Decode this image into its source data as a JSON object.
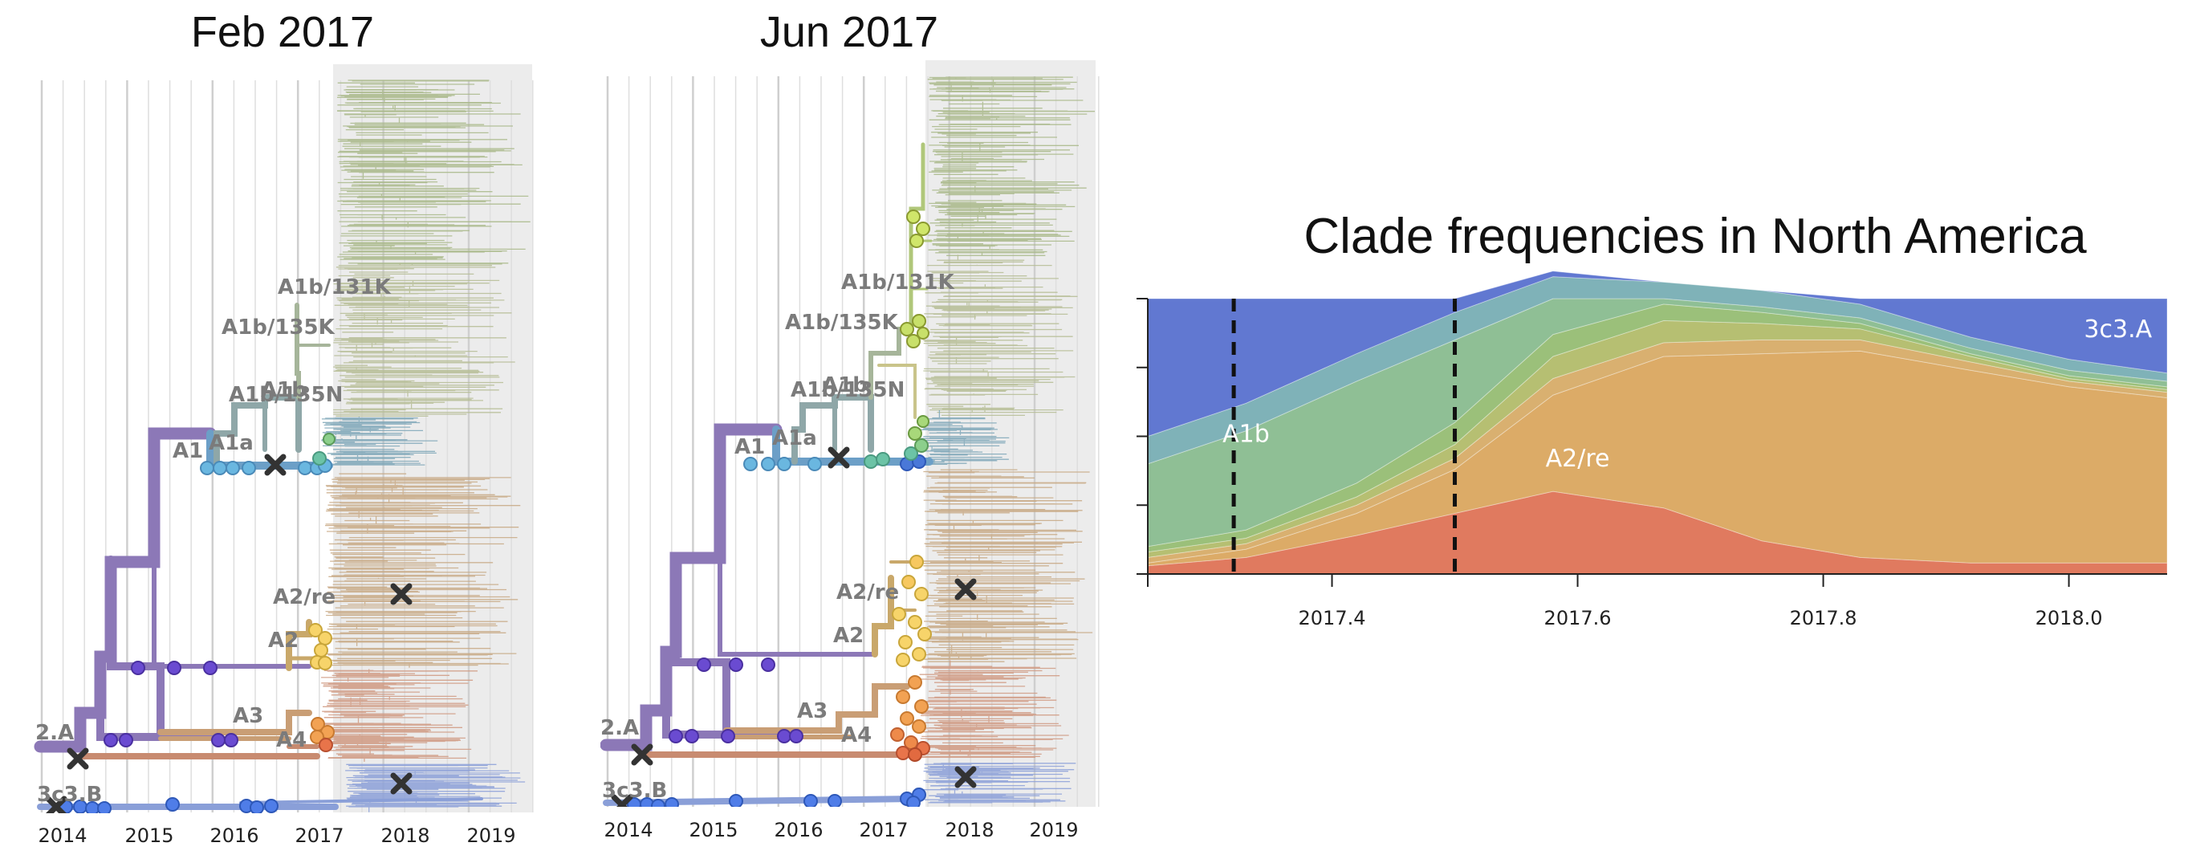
{
  "panels": [
    {
      "title": "Feb 2017",
      "x_ticks": [
        "2014",
        "2015",
        "2016",
        "2017",
        "2018",
        "2019"
      ],
      "clade_labels": [
        "A1b/131K",
        "A1b/135K",
        "A1b/135N",
        "A1b",
        "A1a",
        "A1",
        "A2/re",
        "A2",
        "A3",
        "A4",
        "2.A",
        "3c3.B"
      ]
    },
    {
      "title": "Jun 2017",
      "x_ticks": [
        "2014",
        "2015",
        "2016",
        "2017",
        "2018",
        "2019"
      ],
      "clade_labels": [
        "A1b/131K",
        "A1b/135K",
        "A1b/135N",
        "A1b",
        "A1a",
        "A1",
        "A2/re",
        "A2",
        "A3",
        "A4",
        "2.A",
        "3c3.B"
      ]
    }
  ],
  "chart_data": {
    "type": "area",
    "title": "Clade frequencies in North America",
    "xlabel": "",
    "ylabel": "",
    "x_ticks": [
      "2017.4",
      "2017.6",
      "2017.8",
      "2018.0"
    ],
    "xlim": [
      2017.25,
      2018.08
    ],
    "ylim": [
      0,
      1
    ],
    "x": [
      2017.25,
      2017.33,
      2017.42,
      2017.5,
      2017.58,
      2017.67,
      2017.75,
      2017.83,
      2017.92,
      2018.0,
      2018.08
    ],
    "series": [
      {
        "name": "",
        "color": "#e07a5f",
        "values": [
          0.03,
          0.06,
          0.14,
          0.22,
          0.3,
          0.24,
          0.12,
          0.06,
          0.04,
          0.04,
          0.04
        ]
      },
      {
        "name": "A2/re",
        "color": "#dcab67",
        "values": [
          0.01,
          0.03,
          0.08,
          0.16,
          0.35,
          0.55,
          0.68,
          0.75,
          0.7,
          0.64,
          0.6
        ]
      },
      {
        "name": "",
        "color": "#d9b070",
        "values": [
          0.02,
          0.02,
          0.03,
          0.04,
          0.06,
          0.05,
          0.05,
          0.04,
          0.03,
          0.02,
          0.02
        ]
      },
      {
        "name": "",
        "color": "#b6bf72",
        "values": [
          0.02,
          0.02,
          0.03,
          0.05,
          0.08,
          0.08,
          0.06,
          0.04,
          0.02,
          0.01,
          0.01
        ]
      },
      {
        "name": "",
        "color": "#9bc07a",
        "values": [
          0.02,
          0.03,
          0.05,
          0.08,
          0.08,
          0.06,
          0.04,
          0.02,
          0.01,
          0.01,
          0.01
        ]
      },
      {
        "name": "A1b",
        "color": "#8fbf95",
        "values": [
          0.3,
          0.36,
          0.37,
          0.3,
          0.13,
          0.02,
          0.02,
          0.02,
          0.02,
          0.02,
          0.02
        ]
      },
      {
        "name": "",
        "color": "#7fb2b8",
        "values": [
          0.1,
          0.1,
          0.1,
          0.1,
          0.08,
          0.06,
          0.06,
          0.05,
          0.04,
          0.04,
          0.03
        ]
      },
      {
        "name": "3c3.A",
        "color": "#6178d1",
        "values": [
          0.5,
          0.38,
          0.2,
          0.05,
          0.02,
          0.0,
          0.0,
          0.02,
          0.14,
          0.22,
          0.27
        ]
      }
    ],
    "annotations": [
      {
        "text": "A1b",
        "x": 2017.33,
        "y": 0.48
      },
      {
        "text": "A2/re",
        "x": 2017.6,
        "y": 0.39
      },
      {
        "text": "3c3.A",
        "x": 2018.04,
        "y": 0.86
      }
    ],
    "vlines": [
      2017.32,
      2017.5
    ]
  }
}
